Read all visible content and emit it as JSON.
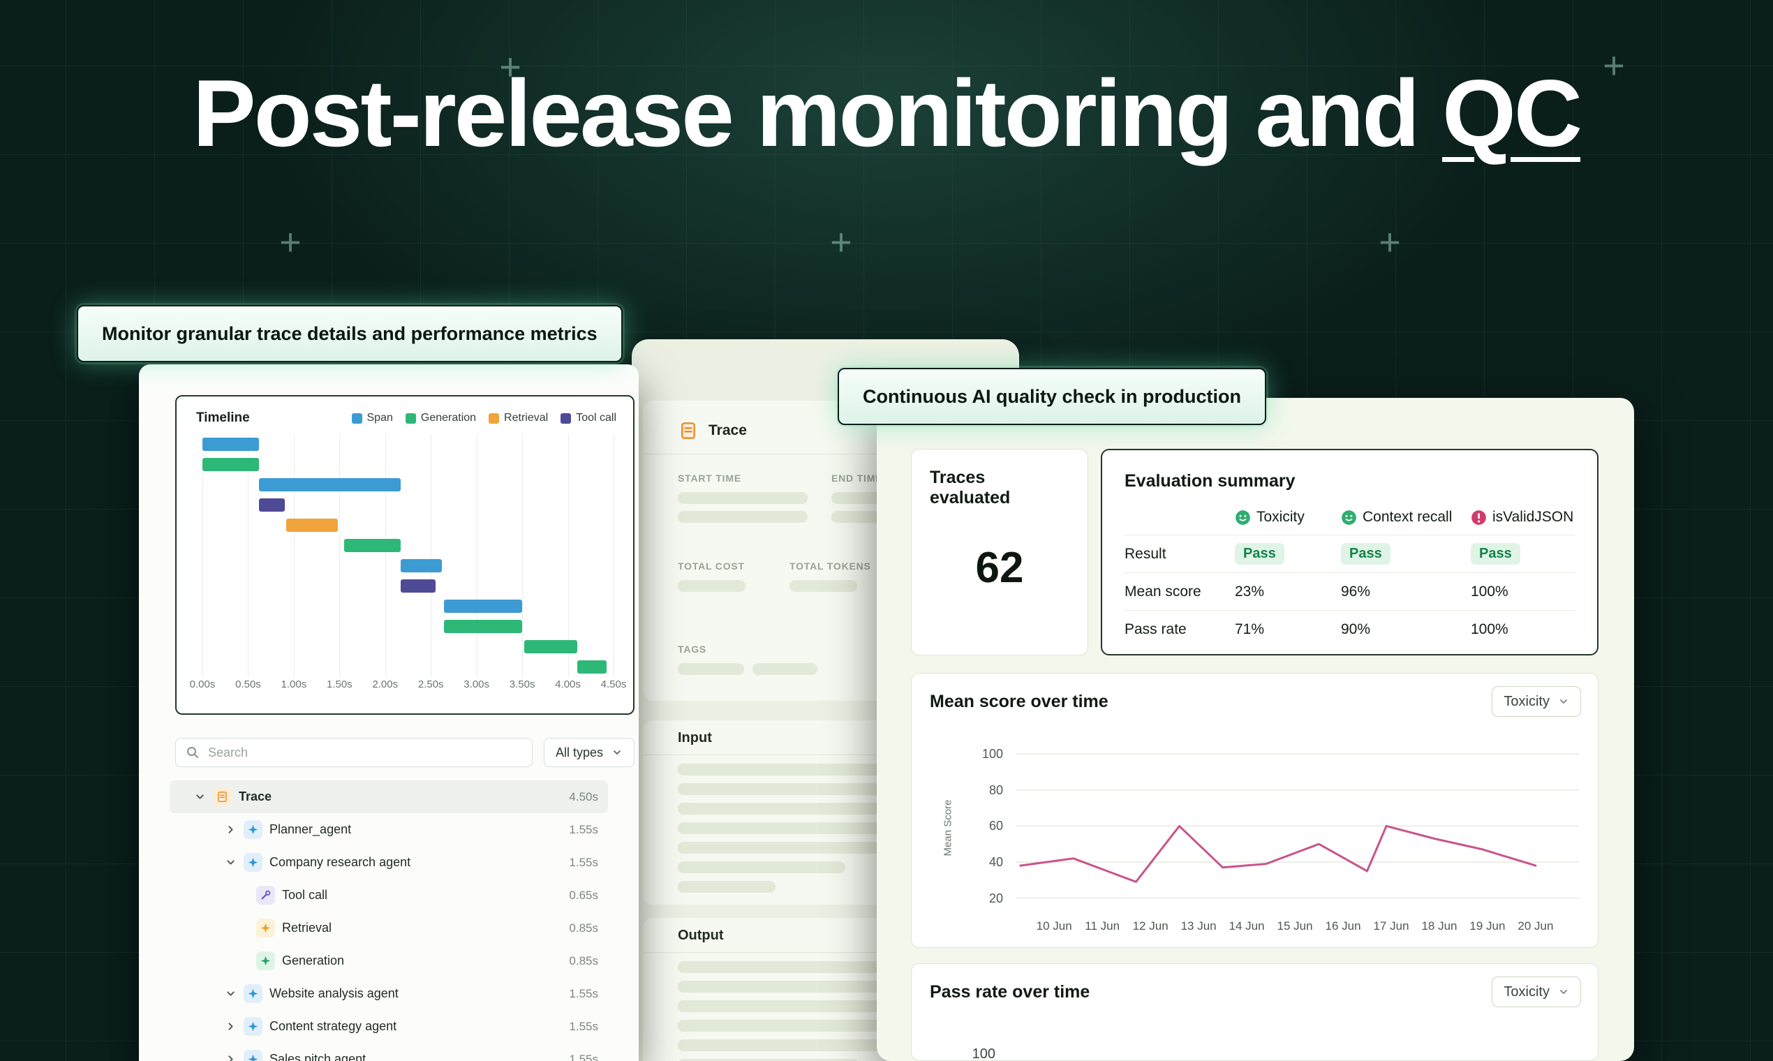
{
  "hero": {
    "title_prefix": "Post-release monitoring and ",
    "title_underlined": "QC"
  },
  "callouts": {
    "left": "Monitor granular trace details and performance metrics",
    "right": "Continuous AI quality check in production"
  },
  "timeline_panel": {
    "title": "Timeline",
    "legend": [
      {
        "label": "Span",
        "color": "#3d9bd3"
      },
      {
        "label": "Generation",
        "color": "#2eb878"
      },
      {
        "label": "Retrieval",
        "color": "#f1a33c"
      },
      {
        "label": "Tool call",
        "color": "#4f4a96"
      }
    ],
    "axis_ticks": [
      "0.00s",
      "0.50s",
      "1.00s",
      "1.50s",
      "2.00s",
      "2.50s",
      "3.00s",
      "3.50s",
      "4.00s",
      "4.50s"
    ],
    "axis_max_s": 4.5,
    "bars": [
      {
        "type": "Span",
        "start": 0.0,
        "end": 0.62
      },
      {
        "type": "Generation",
        "start": 0.0,
        "end": 0.62
      },
      {
        "type": "Span",
        "start": 0.62,
        "end": 2.17
      },
      {
        "type": "Tool call",
        "start": 0.62,
        "end": 0.9
      },
      {
        "type": "Retrieval",
        "start": 0.92,
        "end": 1.48
      },
      {
        "type": "Generation",
        "start": 1.55,
        "end": 2.17
      },
      {
        "type": "Span",
        "start": 2.17,
        "end": 2.62
      },
      {
        "type": "Tool call",
        "start": 2.17,
        "end": 2.55
      },
      {
        "type": "Span",
        "start": 2.64,
        "end": 3.5
      },
      {
        "type": "Generation",
        "start": 2.64,
        "end": 3.5
      },
      {
        "type": "Generation",
        "start": 3.52,
        "end": 4.1
      },
      {
        "type": "Generation",
        "start": 4.1,
        "end": 4.42
      }
    ]
  },
  "search": {
    "placeholder": "Search",
    "filter_label": "All types"
  },
  "trace_tree": {
    "rows": [
      {
        "label": "Trace",
        "duration": "4.50s",
        "indent": 0,
        "chevron": "down",
        "icon": "trace",
        "selected": true
      },
      {
        "label": "Planner_agent",
        "duration": "1.55s",
        "indent": 1,
        "chevron": "right",
        "icon": "agent",
        "selected": false
      },
      {
        "label": "Company research agent",
        "duration": "1.55s",
        "indent": 1,
        "chevron": "down",
        "icon": "agent",
        "selected": false
      },
      {
        "label": "Tool call",
        "duration": "0.65s",
        "indent": 2,
        "chevron": "none",
        "icon": "tool",
        "selected": false
      },
      {
        "label": "Retrieval",
        "duration": "0.85s",
        "indent": 2,
        "chevron": "none",
        "icon": "retrieval",
        "selected": false
      },
      {
        "label": "Generation",
        "duration": "0.85s",
        "indent": 2,
        "chevron": "none",
        "icon": "generation",
        "selected": false
      },
      {
        "label": "Website analysis agent",
        "duration": "1.55s",
        "indent": 1,
        "chevron": "down",
        "icon": "agent",
        "selected": false
      },
      {
        "label": "Content strategy agent",
        "duration": "1.55s",
        "indent": 1,
        "chevron": "right",
        "icon": "agent",
        "selected": false
      },
      {
        "label": "Sales pitch agent",
        "duration": "1.55s",
        "indent": 1,
        "chevron": "right",
        "icon": "agent",
        "selected": false
      }
    ]
  },
  "trace_details": {
    "title": "Trace",
    "fields": [
      {
        "label": "START TIME"
      },
      {
        "label": "END TIMES"
      },
      {
        "label": "TOTAL COST"
      },
      {
        "label": "TOTAL TOKENS"
      },
      {
        "label": "TAGS"
      }
    ],
    "input_title": "Input",
    "output_title": "Output"
  },
  "evaluation": {
    "traces_evaluated_label": "Traces evaluated",
    "traces_evaluated_value": "62",
    "summary_title": "Evaluation summary",
    "row_labels": {
      "result": "Result",
      "mean_score": "Mean score",
      "pass_rate": "Pass rate"
    },
    "metrics": [
      {
        "name": "Toxicity",
        "icon": "smiley",
        "icon_color": "#2fae6f",
        "result": "Pass",
        "mean_score": "23%",
        "pass_rate": "71%"
      },
      {
        "name": "Context recall",
        "icon": "smiley",
        "icon_color": "#2fae6f",
        "result": "Pass",
        "mean_score": "96%",
        "pass_rate": "90%"
      },
      {
        "name": "isValidJSON",
        "icon": "json",
        "icon_color": "#d23a6b",
        "result": "Pass",
        "mean_score": "100%",
        "pass_rate": "100%"
      }
    ]
  },
  "chart_data": {
    "type": "line",
    "title": "Mean score over time",
    "dropdown": "Toxicity",
    "ylabel": "Mean Score",
    "line_color": "#c9548c",
    "yticks": [
      100,
      80,
      60,
      40,
      20
    ],
    "xticks": [
      "10 Jun",
      "11 Jun",
      "12 Jun",
      "13 Jun",
      "14 Jun",
      "15 Jun",
      "16 Jun",
      "17 Jun",
      "18 Jun",
      "19 Jun",
      "20 Jun"
    ],
    "x_range": [
      9.2,
      20.9
    ],
    "y_range": [
      14,
      104
    ],
    "points": [
      {
        "x": 9.3,
        "y": 38
      },
      {
        "x": 10.4,
        "y": 42
      },
      {
        "x": 11.1,
        "y": 35
      },
      {
        "x": 11.7,
        "y": 29
      },
      {
        "x": 12.6,
        "y": 60
      },
      {
        "x": 13.5,
        "y": 37
      },
      {
        "x": 14.4,
        "y": 39
      },
      {
        "x": 15.5,
        "y": 50
      },
      {
        "x": 16.5,
        "y": 35
      },
      {
        "x": 16.9,
        "y": 60
      },
      {
        "x": 17.9,
        "y": 53
      },
      {
        "x": 18.9,
        "y": 47
      },
      {
        "x": 20.0,
        "y": 38
      }
    ]
  },
  "pass_rate_chart": {
    "title": "Pass rate over time",
    "dropdown": "Toxicity",
    "first_ytick": "100"
  }
}
